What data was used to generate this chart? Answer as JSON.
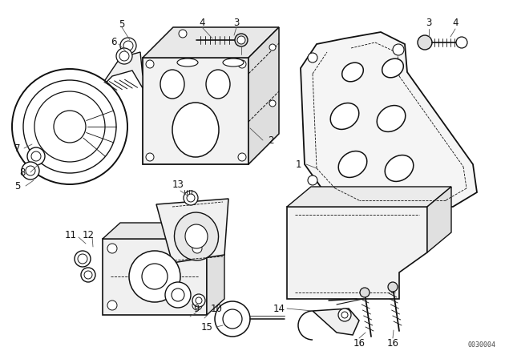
{
  "background_color": "#ffffff",
  "line_color": "#111111",
  "label_color": "#111111",
  "diagram_code": "0030004",
  "label_fontsize": 8.5,
  "figsize": [
    6.4,
    4.48
  ],
  "dpi": 100
}
